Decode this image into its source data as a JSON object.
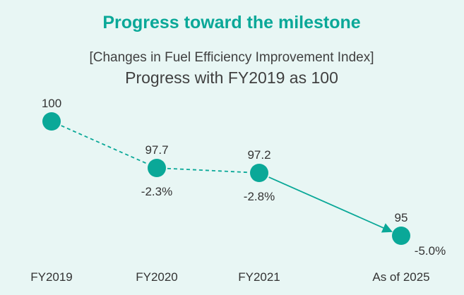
{
  "chart_data": {
    "type": "line",
    "title": "Progress toward the milestone",
    "subtitle": "[Changes in Fuel Efficiency Improvement Index]",
    "subtitle2": "Progress with FY2019 as 100",
    "categories": [
      "FY2019",
      "FY2020",
      "FY2021",
      "As of 2025"
    ],
    "values": [
      100,
      97.7,
      97.2,
      95
    ],
    "value_labels": [
      "100",
      "97.7",
      "97.2",
      "95"
    ],
    "change_labels": [
      "",
      "-2.3%",
      "-2.8%",
      "-5.0%"
    ],
    "segment_styles": [
      "dashed",
      "dashed",
      "solid-arrow"
    ],
    "ylim": [
      94.6,
      101.2
    ],
    "grid": false,
    "legend": "none",
    "colors": {
      "accent": "#0aa898",
      "marker": "#0aa898",
      "line": "#0aa898",
      "text": "#333333",
      "subtitle": "#404040",
      "background": "#e8f6f4"
    }
  }
}
